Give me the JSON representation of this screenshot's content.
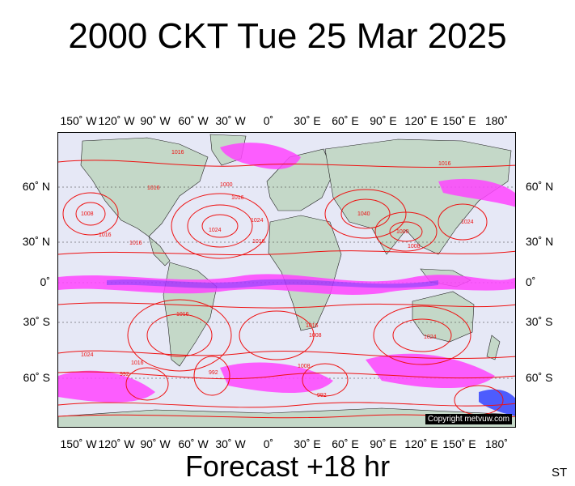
{
  "title": "2000 CKT Tue 25 Mar 2025",
  "subtitle": "Forecast +18 hr",
  "corner_label": "ST",
  "copyright": "Copyright metvuw.com",
  "lon_labels": [
    "150˚ W",
    "120˚ W",
    "90˚ W",
    "60˚ W",
    "30˚ W",
    "0˚",
    "30˚ E",
    "60˚ E",
    "90˚ E",
    "120˚ E",
    "150˚ E",
    "180˚"
  ],
  "lat_labels": [
    "60˚ N",
    "30˚ N",
    "0˚",
    "30˚ S",
    "60˚ S"
  ],
  "isobar_labels": [
    "1016",
    "1016",
    "1000",
    "1016",
    "1008",
    "1016",
    "1016",
    "1024",
    "1016",
    "1024",
    "1040",
    "1000",
    "1008",
    "1024",
    "1016",
    "1016",
    "1008",
    "1024",
    "1024",
    "1016",
    "992",
    "992",
    "1008",
    "992",
    "1016"
  ],
  "colors": {
    "ocean": "#e6e8f6",
    "land": "#c4d8c8",
    "isobar": "#ee1111",
    "precip_light": "#ff44ff",
    "precip_mid": "#aa33ff",
    "precip_heavy": "#3344ff",
    "grid": "#333333"
  }
}
